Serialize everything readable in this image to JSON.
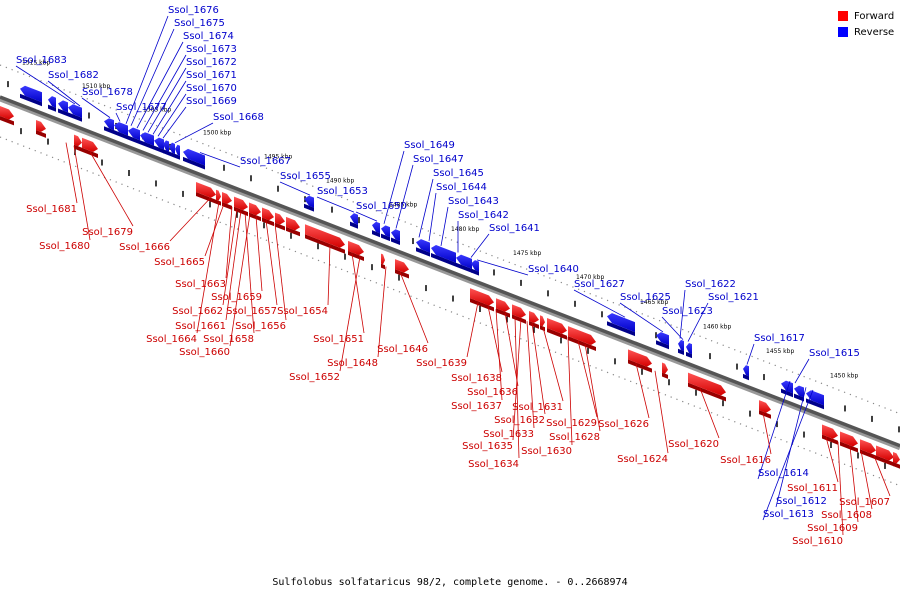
{
  "legend": {
    "forward_label": "Forward",
    "reverse_label": "Reverse",
    "forward_color": "#ff0000",
    "reverse_color": "#0000ff"
  },
  "footer": "Sulfolobus solfataricus 98/2, complete genome. - 0..2668974",
  "ticks": [
    "1515 kbp",
    "1510 kbp",
    "1505 kbp",
    "1500 kbp",
    "1495 kbp",
    "1490 kbp",
    "1485 kbp",
    "1480 kbp",
    "1475 kbp",
    "1470 kbp",
    "1465 kbp",
    "1460 kbp",
    "1455 kbp",
    "1450 kbp"
  ],
  "forward_genes": [
    "Ssol_1681",
    "Ssol_1680",
    "Ssol_1679",
    "Ssol_1666",
    "Ssol_1665",
    "Ssol_1663",
    "Ssol_1662",
    "Ssol_1661",
    "Ssol_1664",
    "Ssol_1659",
    "Ssol_1657",
    "Ssol_1658",
    "Ssol_1656",
    "Ssol_1660",
    "Ssol_1654",
    "Ssol_1651",
    "Ssol_1652",
    "Ssol_1648",
    "Ssol_1646",
    "Ssol_1639",
    "Ssol_1638",
    "Ssol_1636",
    "Ssol_1637",
    "Ssol_1632",
    "Ssol_1633",
    "Ssol_1631",
    "Ssol_1635",
    "Ssol_1634",
    "Ssol_1629",
    "Ssol_1628",
    "Ssol_1630",
    "Ssol_1626",
    "Ssol_1624",
    "Ssol_1620",
    "Ssol_1616",
    "Ssol_1611",
    "Ssol_1607",
    "Ssol_1608",
    "Ssol_1609",
    "Ssol_1610"
  ],
  "reverse_genes": [
    "Ssol_1676",
    "Ssol_1675",
    "Ssol_1674",
    "Ssol_1673",
    "Ssol_1672",
    "Ssol_1671",
    "Ssol_1670",
    "Ssol_1669",
    "Ssol_1668",
    "Ssol_1683",
    "Ssol_1682",
    "Ssol_1678",
    "Ssol_1677",
    "Ssol_1667",
    "Ssol_1655",
    "Ssol_1653",
    "Ssol_1650",
    "Ssol_1649",
    "Ssol_1647",
    "Ssol_1645",
    "Ssol_1644",
    "Ssol_1643",
    "Ssol_1642",
    "Ssol_1641",
    "Ssol_1640",
    "Ssol_1627",
    "Ssol_1625",
    "Ssol_1622",
    "Ssol_1621",
    "Ssol_1623",
    "Ssol_1617",
    "Ssol_1615",
    "Ssol_1614",
    "Ssol_1612",
    "Ssol_1613"
  ]
}
